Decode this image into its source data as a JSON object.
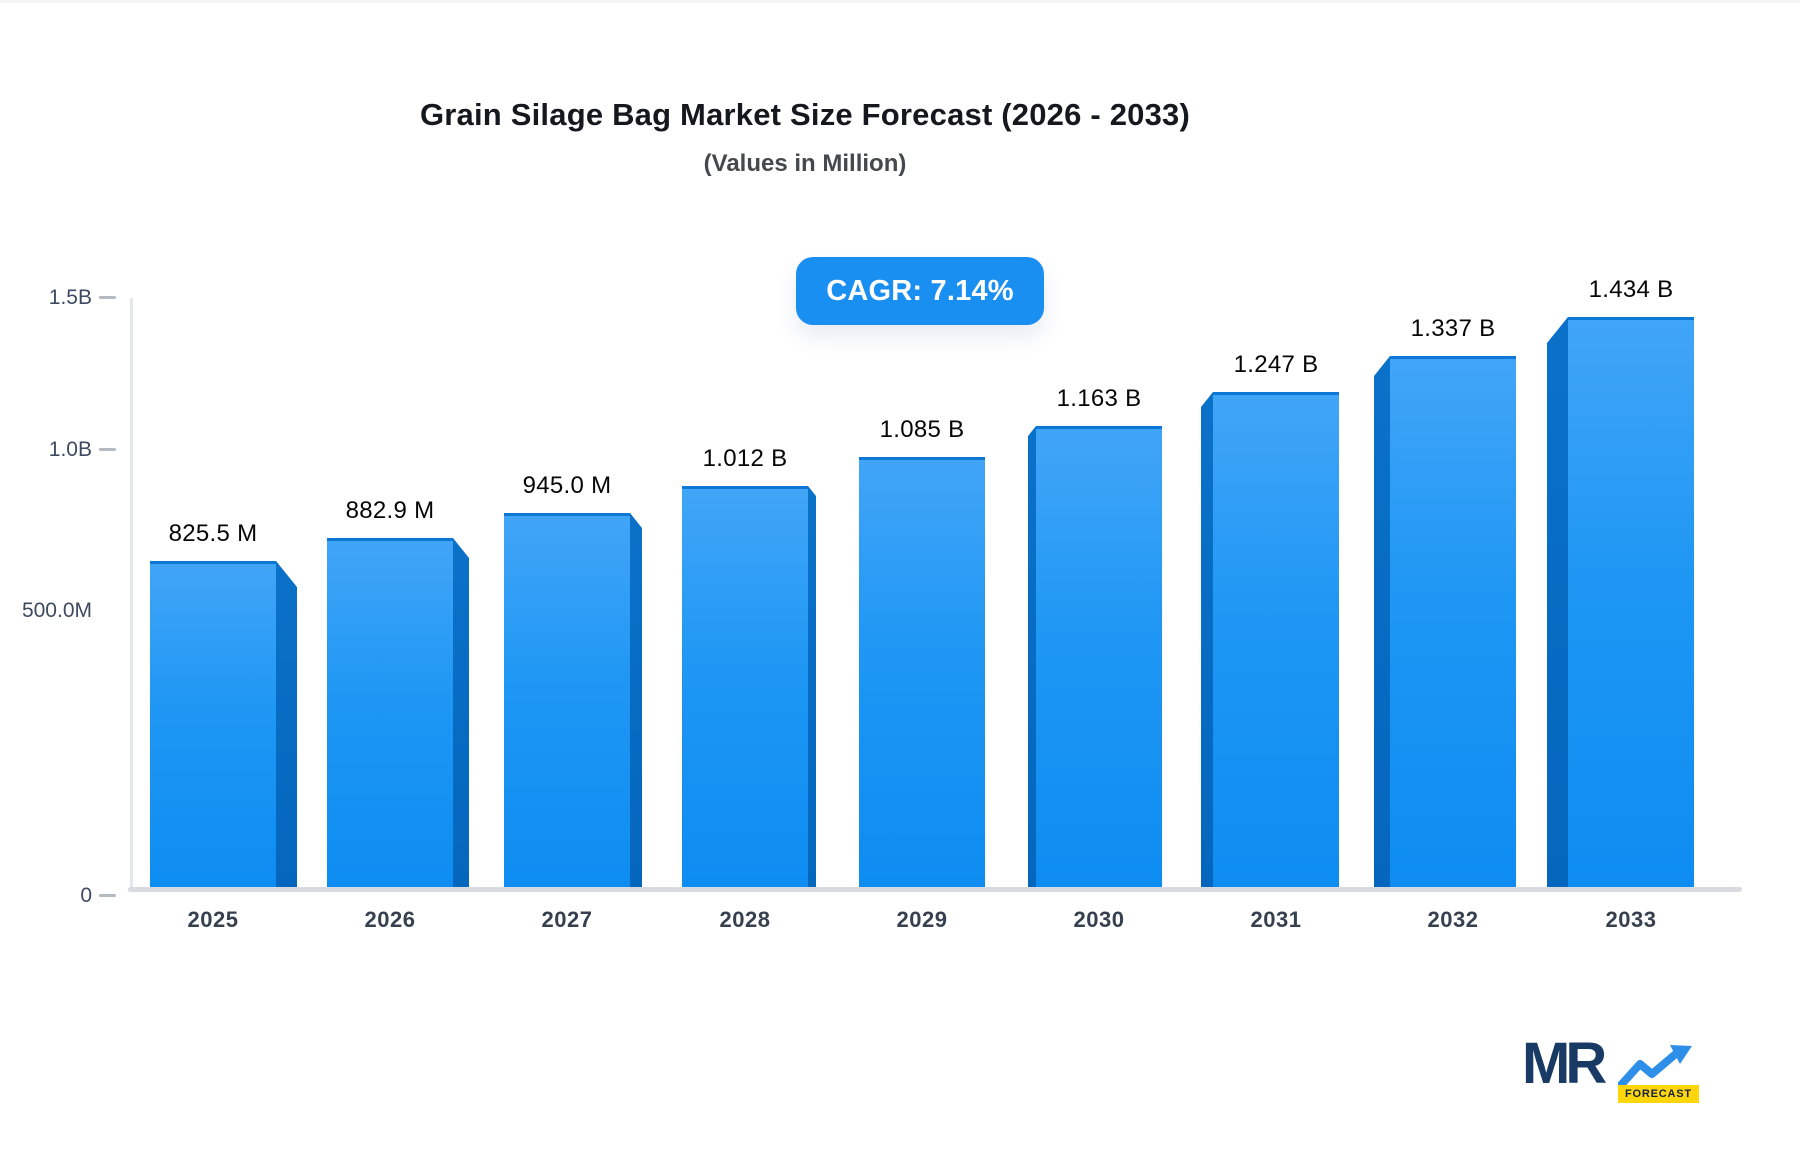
{
  "header": {
    "title": "Grain Silage Bag Market Size Forecast (2026 - 2033)",
    "subtitle": "(Values in Million)"
  },
  "cagr_label": "CAGR: 7.14%",
  "chart_data": {
    "type": "bar",
    "title": "Grain Silage Bag Market Size Forecast (2026 - 2033)",
    "subtitle": "(Values in Million)",
    "categories": [
      "2025",
      "2026",
      "2027",
      "2028",
      "2029",
      "2030",
      "2031",
      "2032",
      "2033"
    ],
    "values_millions": [
      825.5,
      882.9,
      945.0,
      1012,
      1085,
      1163,
      1247,
      1337,
      1434
    ],
    "value_labels": [
      "825.5 M",
      "882.9 M",
      "945.0 M",
      "1.012 B",
      "1.085 B",
      "1.163 B",
      "1.247 B",
      "1.337 B",
      "1.434 B"
    ],
    "annotation": "CAGR: 7.14%",
    "y_axis_ticks": [
      {
        "label": "1.5B",
        "value_millions": 1500,
        "dash": true
      },
      {
        "label": "1.0B",
        "value_millions": 1000,
        "dash": true
      },
      {
        "label": "500.0M",
        "value_millions": 500,
        "dash": false
      },
      {
        "label": "0",
        "value_millions": 0,
        "dash": true
      }
    ],
    "ylim_millions": [
      0,
      1500
    ],
    "grid": false,
    "legend": false,
    "style": "3d-perspective-columns",
    "colors": {
      "bar_front_top": "#41a5f7",
      "bar_front_bottom": "#0d8cf2",
      "bar_side": "#0566bd",
      "bar_top_edge": "#0c77d4",
      "badge_background": "#1a8ff2",
      "badge_text": "#ffffff",
      "axis_line": "#d8dbdf",
      "tick_text": "#3d4a61"
    }
  },
  "logo": {
    "mr": "MR",
    "forecast": "FORECAST",
    "colors": {
      "mr_text": "#1a3a66",
      "arrow": "#2e8fe9",
      "forecast_background": "#ffd60a"
    }
  }
}
